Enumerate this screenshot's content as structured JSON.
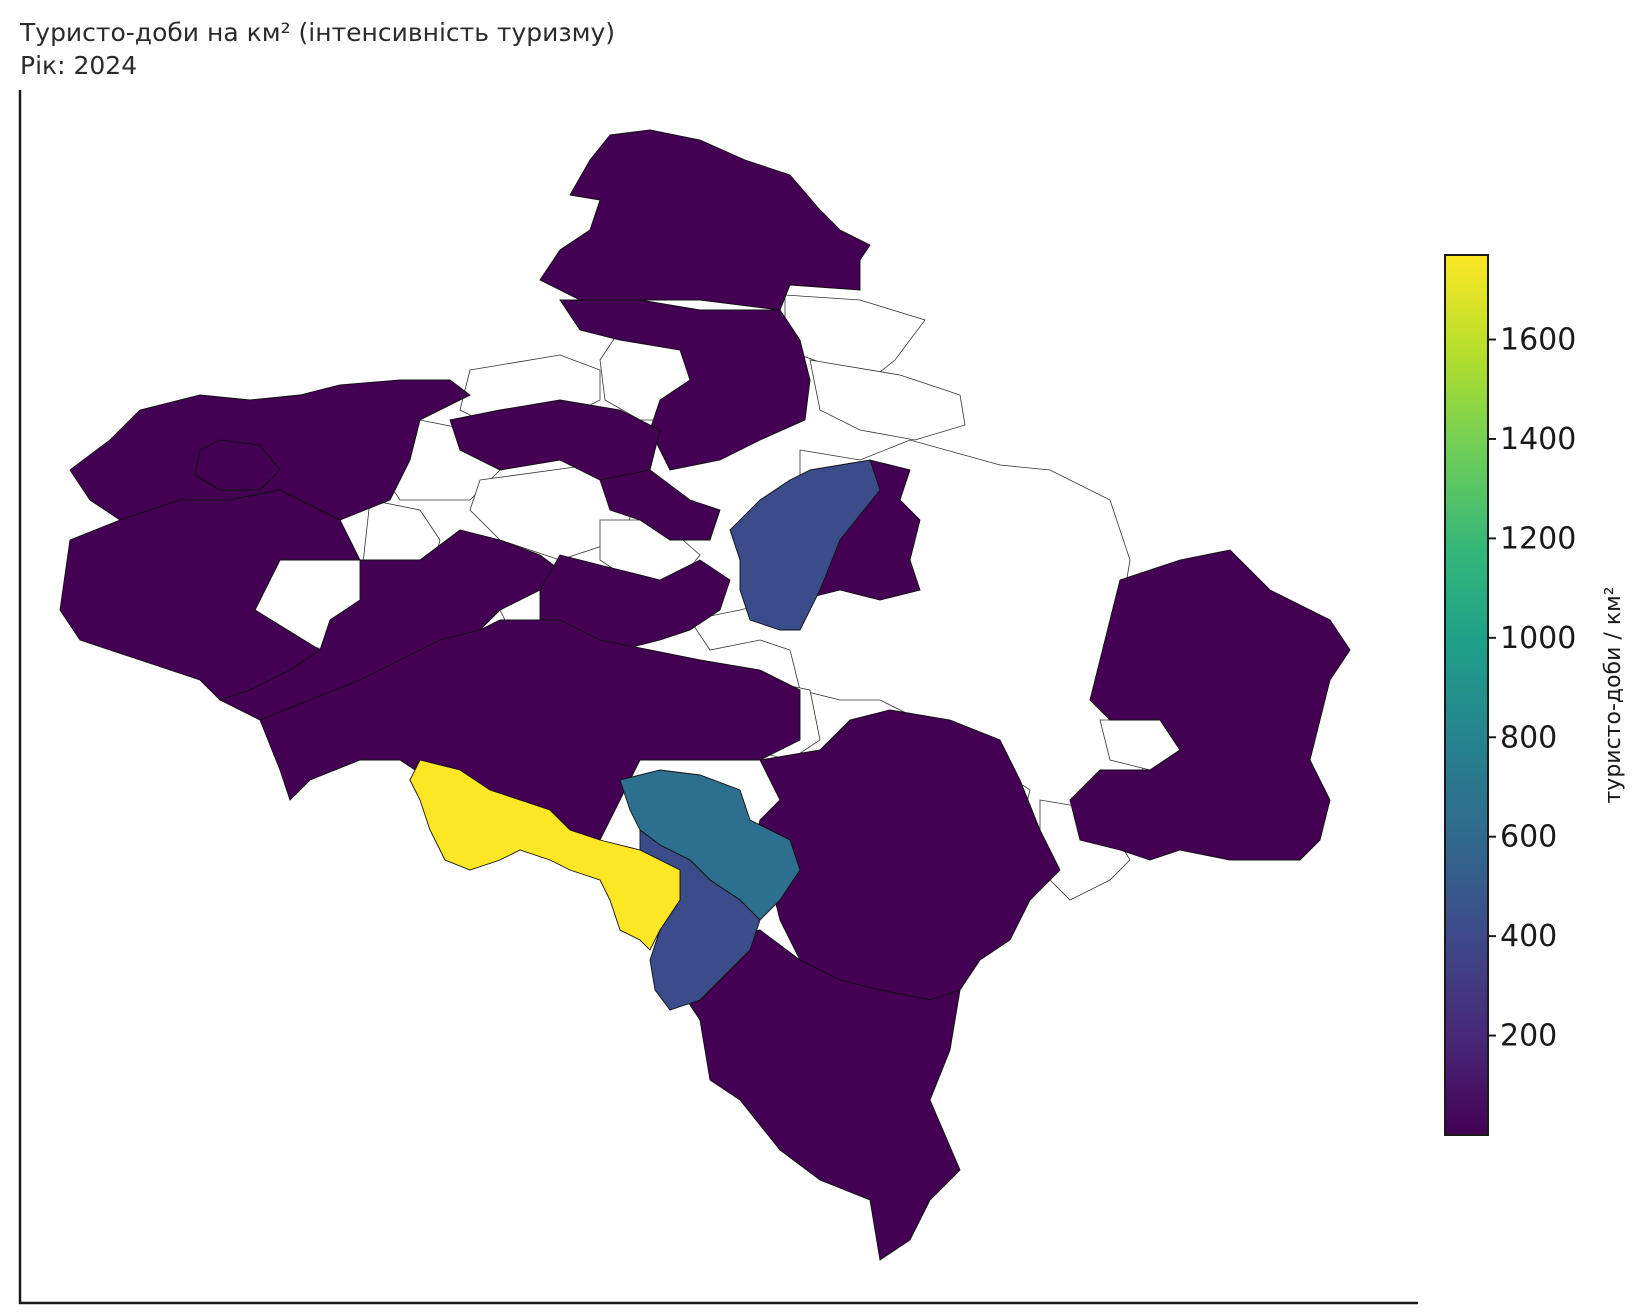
{
  "title": {
    "line1": "Туристо-доби на км² (інтенсивність туризму)",
    "line2": "Рік: 2024"
  },
  "colorbar": {
    "label": "туристо-доби / км²",
    "min": 0,
    "max": 1770,
    "ticks": [
      200,
      400,
      600,
      800,
      1000,
      1200,
      1400,
      1600
    ],
    "tick_labels": [
      "200",
      "400",
      "600",
      "800",
      "1000",
      "1200",
      "1400",
      "1600"
    ],
    "colormap": "viridis",
    "stops": [
      "#440154",
      "#482878",
      "#3e4989",
      "#31688e",
      "#26828e",
      "#1f9e89",
      "#35b779",
      "#6ece58",
      "#b5de2b",
      "#fde725"
    ]
  },
  "colors": {
    "low": "#440154",
    "mid_low": "#3b4c8a",
    "mid": "#2c6f8e",
    "high": "#fde725",
    "no_data": "#ffffff"
  },
  "regions": [
    {
      "name": "north-top",
      "value": 20
    },
    {
      "name": "north-second",
      "value": 20
    },
    {
      "name": "west-lake",
      "value": 20
    },
    {
      "name": "west-large",
      "value": 20
    },
    {
      "name": "west-strip",
      "value": 20
    },
    {
      "name": "center-upper",
      "value": 20
    },
    {
      "name": "center-small",
      "value": 20
    },
    {
      "name": "center-blue",
      "value": 330
    },
    {
      "name": "center-right-purple",
      "value": 20
    },
    {
      "name": "center-mid",
      "value": 20
    },
    {
      "name": "south-center-big",
      "value": 20
    },
    {
      "name": "south-center-right",
      "value": 20
    },
    {
      "name": "south-teal",
      "value": 690
    },
    {
      "name": "south-yellow",
      "value": 1770
    },
    {
      "name": "south-blue-lower",
      "value": 340
    },
    {
      "name": "south-east",
      "value": 20
    },
    {
      "name": "south-tail",
      "value": 20
    },
    {
      "name": "east-block",
      "value": 20
    },
    {
      "name": "east-lower",
      "value": 20
    }
  ]
}
